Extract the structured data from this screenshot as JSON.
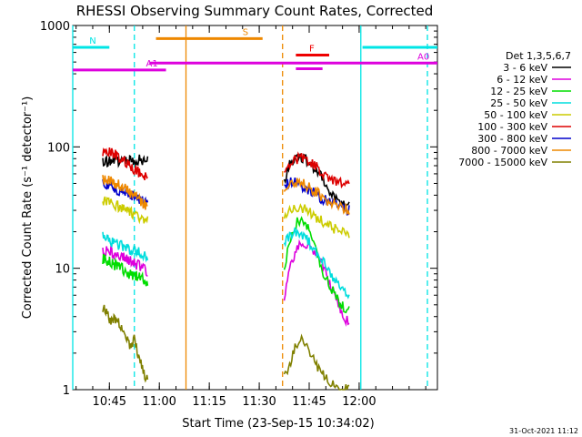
{
  "chart_data": {
    "type": "line",
    "title": "RHESSI Observing Summary Count Rates, Corrected",
    "xlabel": "Start Time (23-Sep-15 10:34:02)",
    "ylabel": "Corrected Count Rate (s⁻¹ detector⁻¹)",
    "y_scale": "log",
    "ylim": [
      1,
      1000
    ],
    "xlim_minutes": [
      0,
      109.5
    ],
    "x_ticks": [
      {
        "label": "10:45",
        "min": 11
      },
      {
        "label": "11:00",
        "min": 26
      },
      {
        "label": "11:15",
        "min": 41
      },
      {
        "label": "11:30",
        "min": 56
      },
      {
        "label": "11:45",
        "min": 71
      },
      {
        "label": "12:00",
        "min": 86
      }
    ],
    "y_ticks": [
      {
        "label": "1",
        "value": 1
      },
      {
        "label": "10",
        "value": 10
      },
      {
        "label": "100",
        "value": 100
      },
      {
        "label": "1000",
        "value": 1000
      }
    ],
    "legend_title": "Det 1,3,5,6,7",
    "legend_position": "right",
    "series": [
      {
        "name": "3 - 6 keV",
        "color": "#000000",
        "seg1": [
          75,
          76,
          76,
          77,
          77,
          78,
          78,
          78,
          78,
          78,
          79
        ],
        "seg2": [
          50,
          68,
          76,
          82,
          84,
          82,
          78,
          73,
          68,
          62,
          58,
          52,
          48,
          42,
          38,
          36,
          34,
          33,
          32
        ]
      },
      {
        "name": "6 - 12 keV",
        "color": "#dd00dd",
        "seg1": [
          14,
          14,
          13.5,
          13,
          12.5,
          12,
          11.5,
          11,
          10.5,
          10,
          9
        ],
        "seg2": [
          6,
          8,
          11,
          13.5,
          15,
          16,
          16,
          15,
          14,
          13,
          11.5,
          10,
          8.5,
          7,
          6,
          5,
          4.2,
          3.8,
          3.5
        ]
      },
      {
        "name": "12 - 25 keV",
        "color": "#00dd00",
        "seg1": [
          12,
          11.5,
          11,
          10.5,
          10,
          9.5,
          9,
          8.8,
          8.5,
          8.2,
          7.5
        ],
        "seg2": [
          10,
          14,
          18,
          22,
          25,
          26,
          24,
          20,
          16,
          13,
          11,
          9,
          8,
          7,
          6,
          5.5,
          5,
          4.7,
          4.5
        ]
      },
      {
        "name": "25 - 50 keV",
        "color": "#00dddd",
        "seg1": [
          18,
          17,
          16.5,
          16,
          15.5,
          15,
          14.5,
          14,
          13.5,
          13,
          12.5
        ],
        "seg2": [
          16,
          18,
          19,
          20,
          20,
          19,
          18,
          16,
          14.5,
          13,
          12,
          11,
          10,
          9,
          8,
          7.5,
          7,
          6.5,
          6.3
        ]
      },
      {
        "name": "50 - 100 keV",
        "color": "#cccc00",
        "seg1": [
          36,
          35,
          34,
          33,
          31,
          30,
          29,
          28,
          27,
          26,
          25
        ],
        "seg2": [
          26,
          28,
          30,
          31,
          32,
          31,
          30,
          29,
          27,
          26,
          25,
          24,
          23,
          22,
          21,
          20,
          20,
          19.5,
          19
        ]
      },
      {
        "name": "100 - 300 keV",
        "color": "#dd0000",
        "seg1": [
          92,
          90,
          88,
          85,
          80,
          75,
          70,
          66,
          62,
          58,
          56
        ],
        "seg2": [
          64,
          68,
          72,
          76,
          80,
          81,
          80,
          76,
          72,
          68,
          64,
          60,
          56,
          54,
          52,
          51,
          50,
          50,
          49
        ]
      },
      {
        "name": "300 - 800 keV",
        "color": "#0000cc",
        "seg1": [
          50,
          49,
          47,
          45,
          43,
          42,
          40,
          39,
          38,
          36,
          35
        ],
        "seg2": [
          48,
          50,
          52,
          52,
          50,
          48,
          46,
          44,
          42,
          40,
          38,
          37,
          36,
          35,
          34,
          33,
          32,
          31,
          30
        ]
      },
      {
        "name": "800 - 7000 keV",
        "color": "#ee8800",
        "seg1": [
          54,
          53,
          52,
          50,
          47,
          45,
          42,
          40,
          37,
          34,
          32
        ],
        "seg2": [
          47,
          48,
          50,
          51,
          52,
          51,
          49,
          46,
          44,
          42,
          40,
          38,
          36,
          35,
          34,
          33,
          32,
          31,
          30
        ]
      },
      {
        "name": "7000 - 15000 keV",
        "color": "#808000",
        "seg1": [
          4.8,
          4.2,
          3.6,
          3.9,
          3.2,
          2.9,
          2.2,
          2.6,
          1.8,
          1.4,
          1.2
        ],
        "seg2": [
          1.3,
          1.5,
          1.8,
          2.2,
          2.6,
          2.5,
          2.3,
          2.0,
          1.8,
          1.6,
          1.4,
          1.3,
          1.2,
          1.1,
          1.05,
          1.0,
          1.0,
          1.0,
          1.0
        ]
      }
    ],
    "seg1_range_min": [
      9,
      22.5
    ],
    "seg2_range_min": [
      63.5,
      83
    ],
    "flag_bars": [
      {
        "label": "N",
        "color": "#00e5e5",
        "ranges_min": [
          [
            0,
            11
          ],
          [
            87,
            109.5
          ]
        ],
        "value": 660
      },
      {
        "label": "S",
        "color": "#ee8800",
        "ranges_min": [
          [
            25,
            57
          ]
        ],
        "value": 780
      },
      {
        "label": "F",
        "color": "#ee0000",
        "ranges_min": [
          [
            67,
            77
          ]
        ],
        "value": 570
      },
      {
        "label": "A0",
        "color": "#dd00dd",
        "ranges_min": [
          [
            23,
            109.5
          ]
        ],
        "value": 490
      },
      {
        "label": "A1",
        "color": "#dd00dd",
        "ranges_min": [
          [
            0,
            28
          ]
        ],
        "value": 430
      },
      {
        "label": "",
        "color": "#dd00dd",
        "ranges_min": [
          [
            67,
            75
          ]
        ],
        "value": 440
      }
    ],
    "vertical_markers": [
      {
        "color": "#00e5e5",
        "style": "solid",
        "min": 0
      },
      {
        "color": "#00e5e5",
        "style": "dashed",
        "min": 18.5
      },
      {
        "color": "#ee8800",
        "style": "solid",
        "min": 34
      },
      {
        "color": "#ee8800",
        "style": "dashed",
        "min": 63
      },
      {
        "color": "#00e5e5",
        "style": "solid",
        "min": 86.5
      },
      {
        "color": "#00e5e5",
        "style": "dashed",
        "min": 106.5
      }
    ]
  },
  "footer": {
    "timestamp": "31-Oct-2021 11:12"
  }
}
